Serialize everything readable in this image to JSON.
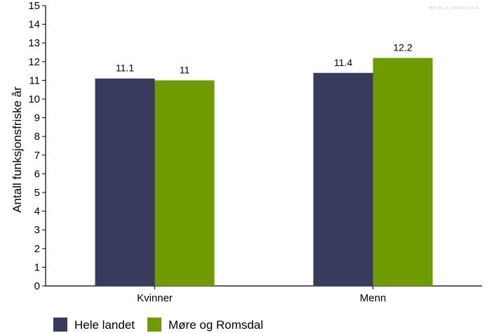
{
  "chart_data": {
    "type": "bar",
    "categories": [
      "Kvinner",
      "Menn"
    ],
    "series": [
      {
        "name": "Hele landet",
        "values": [
          11.1,
          11.4
        ],
        "labels": [
          "11.1",
          "11.4"
        ],
        "color": "#383b5e"
      },
      {
        "name": "Møre og Romsdal",
        "values": [
          11.0,
          12.2
        ],
        "labels": [
          "11",
          "12.2"
        ],
        "color": "#6f9a00"
      }
    ],
    "title": "",
    "xlabel": "",
    "ylabel": "Antall funksjonsfriske år",
    "ylim": [
      0,
      15
    ],
    "yticks": [
      0,
      1,
      2,
      3,
      4,
      5,
      6,
      7,
      8,
      9,
      10,
      11,
      12,
      13,
      14,
      15
    ],
    "grid": false,
    "legend_position": "bottom-left",
    "watermark": "HKY_M1_LP_2024-03-19-10:34"
  }
}
